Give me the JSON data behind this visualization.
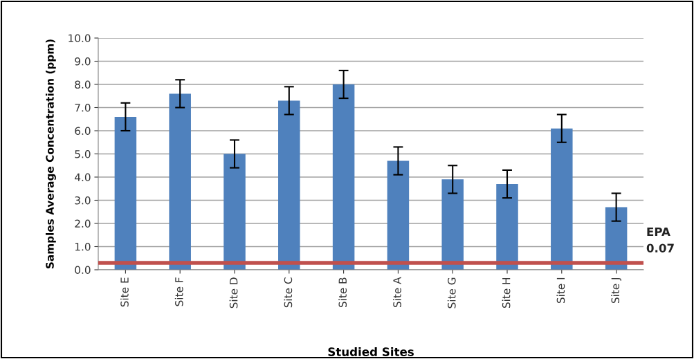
{
  "chart_data": {
    "type": "bar",
    "xlabel": "Studied Sites",
    "ylabel": "Samples Average Concentration (ppm)",
    "categories": [
      "Site E",
      "Site F",
      "Site D",
      "Site C",
      "Site B",
      "Site A",
      "Site G",
      "Site H",
      "Site I",
      "Site J"
    ],
    "series": [
      {
        "color": "#4f81bd",
        "values": [
          6.6,
          7.6,
          5.0,
          7.3,
          8.0,
          4.7,
          3.9,
          3.7,
          6.1,
          2.7
        ],
        "errors": [
          0.6,
          0.6,
          0.6,
          0.6,
          0.6,
          0.6,
          0.6,
          0.6,
          0.6,
          0.6
        ]
      }
    ],
    "ylim": [
      0,
      10
    ],
    "yticks": [
      {
        "value": 0,
        "label": "0.0"
      },
      {
        "value": 1,
        "label": "1.0"
      },
      {
        "value": 2,
        "label": "2.0"
      },
      {
        "value": 3,
        "label": "3.0"
      },
      {
        "value": 4,
        "label": "4.0"
      },
      {
        "value": 5,
        "label": "5.0"
      },
      {
        "value": 6,
        "label": "6.0"
      },
      {
        "value": 7,
        "label": "7.0"
      },
      {
        "value": 8,
        "label": "8.0"
      },
      {
        "value": 9,
        "label": "9.0"
      },
      {
        "value": 10,
        "label": "10.0"
      }
    ],
    "grid": "y",
    "legend": false,
    "ref_lines": [
      {
        "axis": "y",
        "value": 0.3,
        "label": "EPA\n0.07",
        "color": "#c0504d"
      }
    ]
  }
}
